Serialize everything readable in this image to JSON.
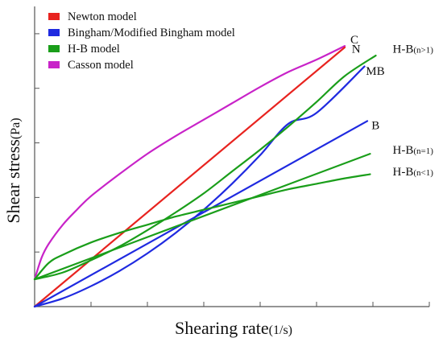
{
  "chart_data": {
    "type": "line",
    "xlabel": "Shearing rate",
    "xlabel_unit": "(1/s)",
    "ylabel": "Shear stress",
    "ylabel_unit": "(Pa)",
    "xlim": [
      0,
      14
    ],
    "ylim": [
      0,
      11
    ],
    "x_ticks": [
      0,
      2,
      4,
      6,
      8,
      10,
      12,
      14
    ],
    "y_ticks": [
      0,
      2,
      4,
      6,
      8,
      10,
      12
    ],
    "tick_labels_shown": false,
    "grid": false,
    "legend_position": "top-left",
    "legend": [
      {
        "label": "Newton model",
        "color": "#e8231f"
      },
      {
        "label": "Bingham/Modified Bingham model",
        "color": "#1f2ae0"
      },
      {
        "label": "H-B model",
        "color": "#1a9e1a"
      },
      {
        "label": "Casson model",
        "color": "#c823c8"
      }
    ],
    "series": [
      {
        "label": "C",
        "color": "#c823c8",
        "label_x": 11.2,
        "label_y": 9.65,
        "x": [
          0,
          0.25,
          0.5,
          1,
          1.5,
          2,
          3,
          4,
          5,
          6,
          7,
          8,
          9,
          10,
          11
        ],
        "y": [
          1,
          1.8,
          2.3,
          3.0,
          3.55,
          4.05,
          4.85,
          5.6,
          6.25,
          6.85,
          7.45,
          8.05,
          8.6,
          9.05,
          9.55
        ]
      },
      {
        "label": "N",
        "color": "#e8231f",
        "label_x": 11.25,
        "label_y": 9.3,
        "x": [
          0,
          11
        ],
        "y": [
          0,
          9.5
        ]
      },
      {
        "label": "MB",
        "color": "#1f2ae0",
        "label_x": 11.75,
        "label_y": 8.5,
        "x": [
          0,
          1,
          2,
          3,
          4,
          5,
          6,
          7,
          8,
          9,
          10,
          11.7
        ],
        "y": [
          0,
          0.3,
          0.75,
          1.3,
          1.95,
          2.7,
          3.55,
          4.5,
          5.55,
          6.7,
          7.1,
          8.8
        ]
      },
      {
        "label": "B",
        "color": "#1f2ae0",
        "label_x": 11.95,
        "label_y": 6.5,
        "x": [
          0,
          11.8
        ],
        "y": [
          0,
          6.8
        ]
      },
      {
        "label": "H-B",
        "subscript": "(n>1)",
        "color": "#1a9e1a",
        "label_x": 12.7,
        "label_y": 9.3,
        "x": [
          0,
          1,
          2,
          3,
          4,
          5,
          6,
          7,
          8,
          9,
          10,
          11,
          12.1
        ],
        "y": [
          1,
          1.25,
          1.7,
          2.2,
          2.8,
          3.45,
          4.15,
          4.95,
          5.75,
          6.6,
          7.5,
          8.45,
          9.2
        ]
      },
      {
        "label": "H-B",
        "subscript": "(n=1)",
        "color": "#1a9e1a",
        "label_x": 12.7,
        "label_y": 5.6,
        "x": [
          0,
          11.9
        ],
        "y": [
          1,
          5.6
        ]
      },
      {
        "label": "H-B",
        "subscript": "(n<1)",
        "color": "#1a9e1a",
        "label_x": 12.7,
        "label_y": 4.8,
        "x": [
          0,
          0.5,
          1,
          2,
          3,
          4,
          5,
          6,
          7,
          8,
          9,
          10,
          11,
          11.9
        ],
        "y": [
          1,
          1.6,
          1.9,
          2.35,
          2.7,
          3.0,
          3.3,
          3.55,
          3.8,
          4.05,
          4.3,
          4.5,
          4.7,
          4.85
        ]
      }
    ]
  }
}
